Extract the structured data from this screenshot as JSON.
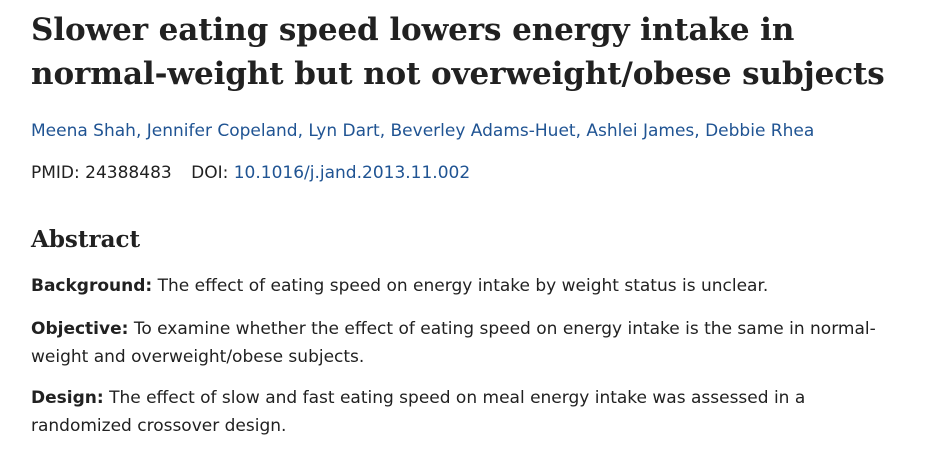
{
  "article": {
    "title": "Slower eating speed lowers energy intake in normal-weight but not overweight/obese subjects",
    "authors": [
      "Meena Shah",
      "Jennifer Copeland",
      "Lyn Dart",
      "Beverley Adams-Huet",
      "Ashlei James",
      "Debbie Rhea"
    ],
    "author_separator": ", ",
    "pmid_label": "PMID:",
    "pmid": "24388483",
    "doi_label": "DOI:",
    "doi": "10.1016/j.jand.2013.11.002"
  },
  "abstract": {
    "heading": "Abstract",
    "sections": [
      {
        "label": "Background:",
        "text": "The effect of eating speed on energy intake by weight status is unclear."
      },
      {
        "label": "Objective:",
        "text": "To examine whether the effect of eating speed on energy intake is the same in normal-weight and overweight/obese subjects."
      },
      {
        "label": "Design:",
        "text": "The effect of slow and fast eating speed on meal energy intake was assessed in a randomized crossover design."
      }
    ]
  },
  "colors": {
    "link": "#205493",
    "text": "#212121"
  }
}
